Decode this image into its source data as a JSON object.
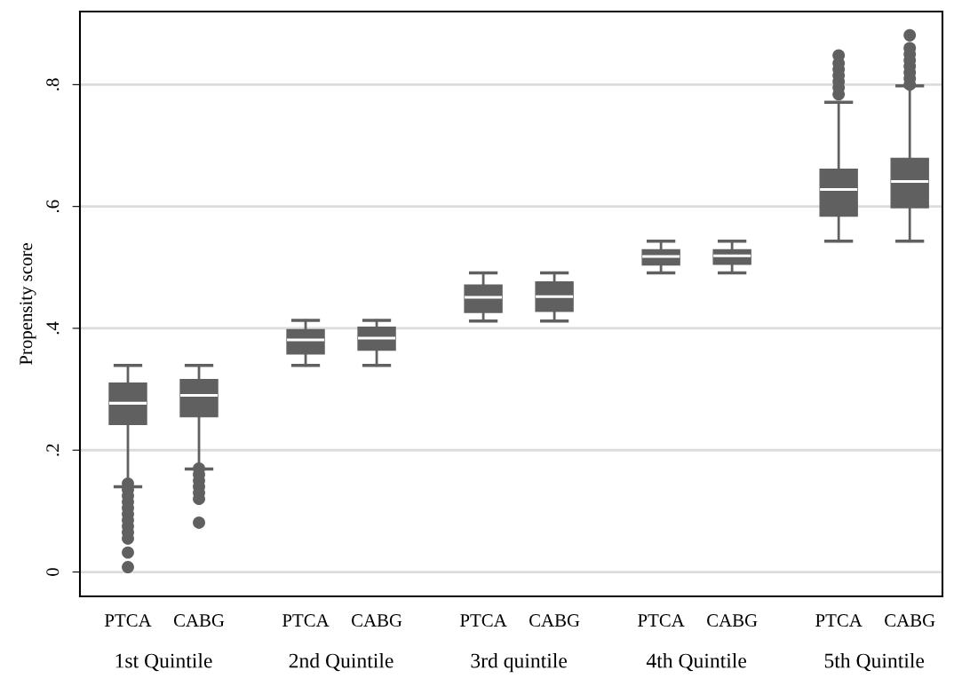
{
  "chart_data": {
    "type": "box",
    "ylabel": "Propensity score",
    "categories": [
      "PTCA",
      "CABG",
      "PTCA",
      "CABG",
      "PTCA",
      "CABG",
      "PTCA",
      "CABG",
      "PTCA",
      "CABG"
    ],
    "color": "#606060",
    "boxes": [
      {
        "low": 0.14,
        "q1": 0.242,
        "median": 0.277,
        "q3": 0.31,
        "high": 0.339,
        "outliers": [
          0.145,
          0.135,
          0.125,
          0.115,
          0.105,
          0.095,
          0.085,
          0.075,
          0.065,
          0.055,
          0.032,
          0.008
        ]
      },
      {
        "low": 0.169,
        "q1": 0.255,
        "median": 0.29,
        "q3": 0.316,
        "high": 0.339,
        "outliers": [
          0.17,
          0.16,
          0.15,
          0.14,
          0.13,
          0.12,
          0.081
        ]
      },
      {
        "low": 0.339,
        "q1": 0.358,
        "median": 0.381,
        "q3": 0.398,
        "high": 0.413
      },
      {
        "low": 0.339,
        "q1": 0.364,
        "median": 0.384,
        "q3": 0.402,
        "high": 0.413
      },
      {
        "low": 0.412,
        "q1": 0.426,
        "median": 0.451,
        "q3": 0.471,
        "high": 0.491
      },
      {
        "low": 0.412,
        "q1": 0.428,
        "median": 0.452,
        "q3": 0.476,
        "high": 0.491
      },
      {
        "low": 0.491,
        "q1": 0.504,
        "median": 0.518,
        "q3": 0.529,
        "high": 0.543
      },
      {
        "low": 0.491,
        "q1": 0.505,
        "median": 0.519,
        "q3": 0.529,
        "high": 0.543
      },
      {
        "low": 0.543,
        "q1": 0.584,
        "median": 0.628,
        "q3": 0.661,
        "high": 0.771,
        "outliers": [
          0.784,
          0.795,
          0.805,
          0.815,
          0.825,
          0.835,
          0.848
        ]
      },
      {
        "low": 0.543,
        "q1": 0.598,
        "median": 0.641,
        "q3": 0.679,
        "high": 0.798,
        "outliers": [
          0.8,
          0.81,
          0.82,
          0.83,
          0.84,
          0.85,
          0.86,
          0.881
        ]
      }
    ],
    "ylim": [
      -0.04,
      0.92
    ],
    "yticks": [
      0,
      {
        "value": 0.2,
        "label": ".2"
      },
      {
        "value": 0.4,
        "label": ".4"
      },
      {
        "value": 0.6,
        "label": ".6"
      },
      {
        "value": 0.8,
        "label": ".8"
      }
    ],
    "grid": "y",
    "marker": "circle",
    "annotations": [
      "1st Quintile",
      "2nd Quintile",
      "3rd quintile",
      "4th Quintile",
      "5th Quintile"
    ]
  }
}
